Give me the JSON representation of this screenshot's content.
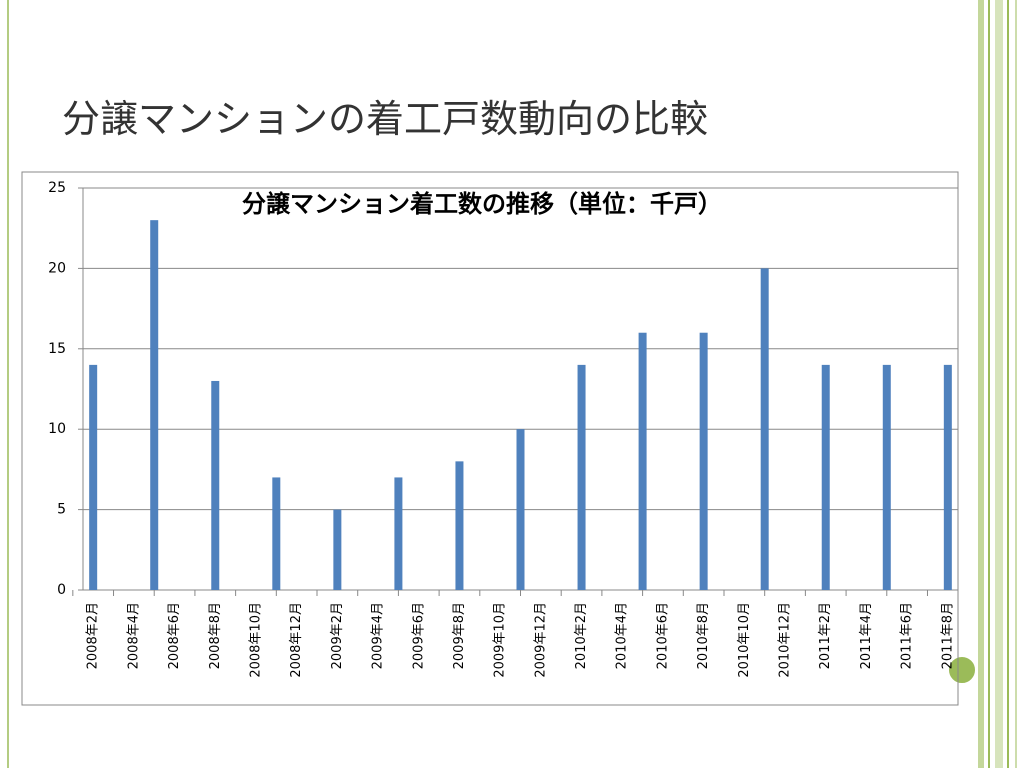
{
  "slide_title": "分譲マンションの着工戸数動向の比較",
  "chart_data": {
    "type": "bar",
    "title": "分譲マンション着工数の推移（単位：千戸）",
    "categories": [
      "2008年2月",
      null,
      "2008年4月",
      null,
      "2008年6月",
      null,
      "2008年8月",
      null,
      "2008年10月",
      null,
      "2008年12月",
      null,
      "2009年2月",
      null,
      "2009年4月",
      null,
      "2009年6月",
      null,
      "2009年8月",
      null,
      "2009年10月",
      null,
      "2009年12月",
      null,
      "2010年2月",
      null,
      "2010年4月",
      null,
      "2010年6月",
      null,
      "2010年8月",
      null,
      "2010年10月",
      null,
      "2010年12月",
      null,
      "2011年2月",
      null,
      "2011年4月",
      null,
      "2011年6月",
      null,
      "2011年8月"
    ],
    "values": [
      14,
      null,
      null,
      23,
      null,
      null,
      13,
      null,
      null,
      7,
      null,
      null,
      5,
      null,
      null,
      7,
      null,
      null,
      8,
      null,
      null,
      10,
      null,
      null,
      14,
      null,
      null,
      16,
      null,
      null,
      16,
      null,
      null,
      20,
      null,
      null,
      14,
      null,
      null,
      14,
      null,
      null,
      14
    ],
    "color": "#4f81bd",
    "ylim": [
      0,
      25
    ],
    "yticks": [
      0,
      5,
      10,
      15,
      20,
      25
    ],
    "grid": true
  }
}
